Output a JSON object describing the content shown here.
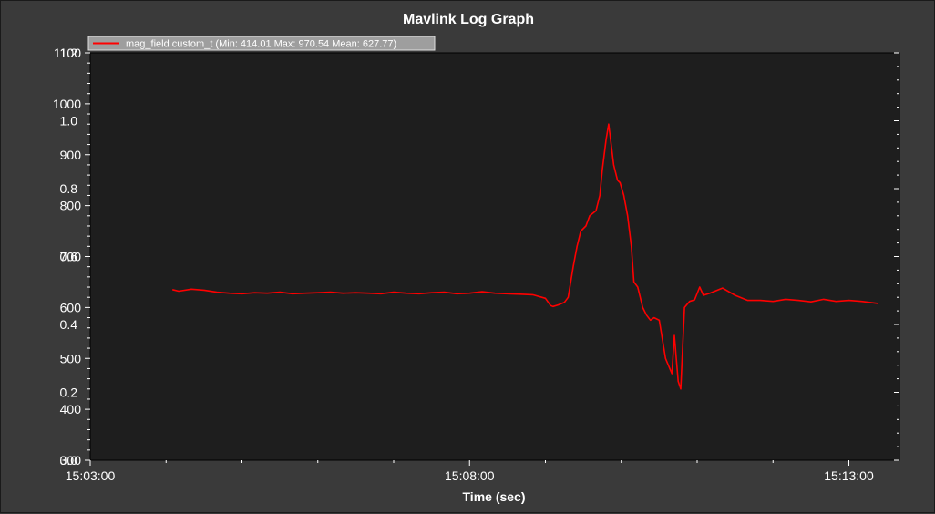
{
  "chart_data": {
    "type": "line",
    "title": "Mavlink Log Graph",
    "xlabel": "Time (sec)",
    "ylabel": "",
    "x_tick_labels": [
      "15:03:00",
      "15:08:00",
      "15:13:00"
    ],
    "xlim": [
      0,
      640
    ],
    "ylim_left": [
      300,
      1100
    ],
    "ylim_right": [
      0.0,
      1.2
    ],
    "y_left_tick_labels": [
      "300",
      "400",
      "500",
      "600",
      "700",
      "800",
      "900",
      "1000",
      "1100"
    ],
    "y_right_tick_labels": [
      "0.0",
      "0.2",
      "0.4",
      "0.6",
      "0.8",
      "1.0",
      "1.2"
    ],
    "grid": false,
    "legend_position": "top-left",
    "series": [
      {
        "name": "mag_field custom_t (Min: 414.01 Max: 970.54 Mean: 627.77)",
        "color": "#ff0000",
        "x": [
          65,
          70,
          80,
          90,
          100,
          110,
          120,
          130,
          140,
          150,
          160,
          170,
          180,
          190,
          200,
          210,
          220,
          230,
          240,
          250,
          260,
          270,
          280,
          290,
          300,
          310,
          320,
          330,
          340,
          350,
          360,
          364,
          366,
          370,
          375,
          378,
          382,
          385,
          388,
          392,
          395,
          400,
          403,
          405,
          408,
          410,
          414,
          417,
          419,
          422,
          425,
          428,
          430,
          433,
          437,
          440,
          443,
          446,
          450,
          455,
          460,
          462,
          465,
          467,
          470,
          474,
          478,
          482,
          485,
          490,
          500,
          510,
          520,
          530,
          540,
          550,
          560,
          570,
          580,
          590,
          600,
          610,
          623
        ],
        "y": [
          635,
          632,
          636,
          634,
          630,
          628,
          627,
          629,
          628,
          630,
          627,
          628,
          629,
          630,
          628,
          629,
          628,
          627,
          630,
          628,
          627,
          629,
          630,
          627,
          628,
          631,
          628,
          627,
          626,
          625,
          618,
          604,
          602,
          605,
          610,
          620,
          680,
          720,
          750,
          760,
          780,
          790,
          820,
          870,
          930,
          960,
          880,
          850,
          845,
          820,
          780,
          720,
          650,
          640,
          600,
          585,
          575,
          580,
          575,
          500,
          470,
          545,
          455,
          440,
          600,
          612,
          615,
          640,
          624,
          628,
          638,
          624,
          614,
          614,
          612,
          616,
          614,
          611,
          616,
          612,
          614,
          612,
          608
        ]
      }
    ]
  }
}
